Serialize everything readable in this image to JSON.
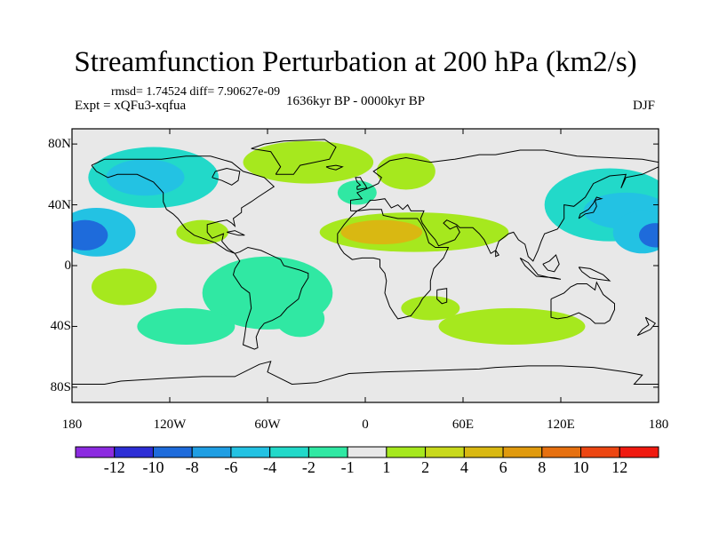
{
  "title": "Streamfunction Perturbation at 200 hPa (km2/s)",
  "stats": "rmsd= 1.74524 diff= 7.90627e-09",
  "experiment": "Expt = xQFu3-xqfua",
  "period": "1636kyr BP - 0000kyr BP",
  "season": "DJF",
  "colors": {
    "ocean_background": "#e8e8e8",
    "coastline": "#000000"
  },
  "x_axis": {
    "ticks": [
      {
        "lon": -180,
        "label": "180"
      },
      {
        "lon": -120,
        "label": "120W"
      },
      {
        "lon": -60,
        "label": "60W"
      },
      {
        "lon": 0,
        "label": "0"
      },
      {
        "lon": 60,
        "label": "60E"
      },
      {
        "lon": 120,
        "label": "120E"
      },
      {
        "lon": 180,
        "label": "180"
      }
    ]
  },
  "y_axis": {
    "ticks": [
      {
        "lat": 80,
        "label": "80N"
      },
      {
        "lat": 40,
        "label": "40N"
      },
      {
        "lat": 0,
        "label": "0"
      },
      {
        "lat": -40,
        "label": "40S"
      },
      {
        "lat": -80,
        "label": "80S"
      }
    ]
  },
  "colorbar": {
    "colors": [
      "#8c2be0",
      "#2d2ed6",
      "#1e6bdb",
      "#1f9ee3",
      "#23c2e3",
      "#22d9c9",
      "#30e8a3",
      "#e8e8e8",
      "#a6e81e",
      "#c8d91c",
      "#d9b812",
      "#e09a0e",
      "#e67010",
      "#ec4612",
      "#f01a10"
    ],
    "labels": [
      "-12",
      "-10",
      "-8",
      "-6",
      "-4",
      "-2",
      "-1",
      "1",
      "2",
      "4",
      "6",
      "8",
      "10",
      "12"
    ]
  },
  "anomalies": [
    {
      "name": "north-atlantic-arctic-positive",
      "lon": -35,
      "lat": 68,
      "rx": 40,
      "ry": 14,
      "fill": "#a6e81e"
    },
    {
      "name": "scandinavia-positive",
      "lon": 25,
      "lat": 62,
      "rx": 18,
      "ry": 12,
      "fill": "#a6e81e"
    },
    {
      "name": "ne-pacific-negative",
      "lon": -130,
      "lat": 58,
      "rx": 40,
      "ry": 20,
      "fill": "#22d9c9"
    },
    {
      "name": "ne-pacific-core",
      "lon": -135,
      "lat": 58,
      "rx": 24,
      "ry": 12,
      "fill": "#23c2e3"
    },
    {
      "name": "nw-pacific-negative",
      "lon": 150,
      "lat": 40,
      "rx": 40,
      "ry": 24,
      "fill": "#22d9c9"
    },
    {
      "name": "nw-pacific-core",
      "lon": 160,
      "lat": 36,
      "rx": 26,
      "ry": 12,
      "fill": "#23c2e3"
    },
    {
      "name": "tropical-east-pacific-negative",
      "lon": -165,
      "lat": 22,
      "rx": 24,
      "ry": 16,
      "fill": "#23c2e3"
    },
    {
      "name": "tropical-east-pacific-core",
      "lon": -172,
      "lat": 20,
      "rx": 14,
      "ry": 10,
      "fill": "#1e6bdb"
    },
    {
      "name": "tropical-west-pacific-negative",
      "lon": 170,
      "lat": 22,
      "rx": 18,
      "ry": 14,
      "fill": "#23c2e3"
    },
    {
      "name": "tropical-west-pacific-core",
      "lon": 178,
      "lat": 20,
      "rx": 10,
      "ry": 8,
      "fill": "#1e6bdb"
    },
    {
      "name": "n-africa-positive",
      "lon": 30,
      "lat": 22,
      "rx": 58,
      "ry": 13,
      "fill": "#a6e81e"
    },
    {
      "name": "n-africa-core",
      "lon": 10,
      "lat": 22,
      "rx": 25,
      "ry": 8,
      "fill": "#d9b812"
    },
    {
      "name": "mexico-positive",
      "lon": -100,
      "lat": 22,
      "rx": 16,
      "ry": 8,
      "fill": "#a6e81e"
    },
    {
      "name": "central-pacific-south-positive",
      "lon": -148,
      "lat": -14,
      "rx": 20,
      "ry": 12,
      "fill": "#a6e81e"
    },
    {
      "name": "south-america-negative",
      "lon": -60,
      "lat": -18,
      "rx": 40,
      "ry": 24,
      "fill": "#30e8a3"
    },
    {
      "name": "south-pacific-negative",
      "lon": -110,
      "lat": -40,
      "rx": 30,
      "ry": 12,
      "fill": "#30e8a3"
    },
    {
      "name": "south-africa-positive",
      "lon": 40,
      "lat": -28,
      "rx": 18,
      "ry": 8,
      "fill": "#a6e81e"
    },
    {
      "name": "australia-positive",
      "lon": 90,
      "lat": -40,
      "rx": 45,
      "ry": 12,
      "fill": "#a6e81e"
    },
    {
      "name": "atlantic-south-negative",
      "lon": -40,
      "lat": -35,
      "rx": 15,
      "ry": 12,
      "fill": "#30e8a3"
    },
    {
      "name": "east-atlantic-negative",
      "lon": -5,
      "lat": 48,
      "rx": 12,
      "ry": 8,
      "fill": "#30e8a3"
    }
  ]
}
